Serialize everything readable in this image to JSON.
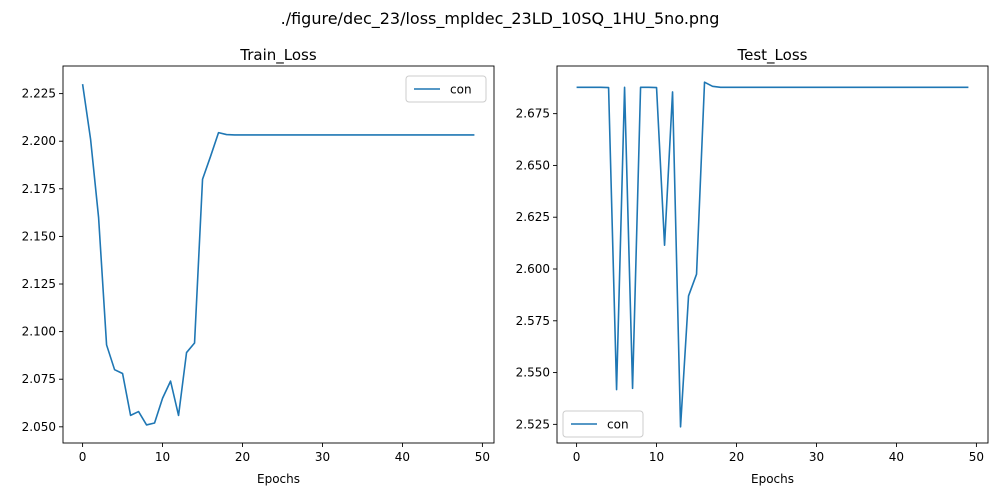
{
  "figure": {
    "suptitle": "./figure/dec_23/loss_mpldec_23LD_10SQ_1HU_5no.png"
  },
  "chart_data": [
    {
      "type": "line",
      "title": "Train_Loss",
      "xlabel": "Epochs",
      "ylabel": "",
      "xlim": [
        -2.45,
        51.45
      ],
      "ylim": [
        2.0415,
        2.2395
      ],
      "xticks": [
        "0",
        "10",
        "20",
        "30",
        "40",
        "50"
      ],
      "xtick_values": [
        0,
        10,
        20,
        30,
        40,
        50
      ],
      "yticks": [
        "2.050",
        "2.075",
        "2.100",
        "2.125",
        "2.150",
        "2.175",
        "2.200",
        "2.225"
      ],
      "ytick_values": [
        2.05,
        2.075,
        2.1,
        2.125,
        2.15,
        2.175,
        2.2,
        2.225
      ],
      "grid": false,
      "legend": "upper right",
      "series": [
        {
          "name": "con",
          "color": "#1f77b4",
          "x": [
            0,
            1,
            2,
            3,
            4,
            5,
            6,
            7,
            8,
            9,
            10,
            11,
            12,
            13,
            14,
            15,
            16,
            17,
            18,
            19,
            20,
            21,
            22,
            23,
            24,
            25,
            26,
            27,
            28,
            29,
            30,
            31,
            32,
            33,
            34,
            35,
            36,
            37,
            38,
            39,
            40,
            41,
            42,
            43,
            44,
            45,
            46,
            47,
            48,
            49
          ],
          "y": [
            2.23,
            2.201,
            2.16,
            2.093,
            2.08,
            2.078,
            2.056,
            2.058,
            2.051,
            2.052,
            2.065,
            2.074,
            2.056,
            2.089,
            2.094,
            2.18,
            2.192,
            2.2045,
            2.2035,
            2.2033,
            2.2033,
            2.2033,
            2.2033,
            2.2033,
            2.2033,
            2.2033,
            2.2033,
            2.2033,
            2.2033,
            2.2033,
            2.2033,
            2.2033,
            2.2033,
            2.2033,
            2.2033,
            2.2033,
            2.2033,
            2.2033,
            2.2033,
            2.2033,
            2.2033,
            2.2033,
            2.2033,
            2.2033,
            2.2033,
            2.2033,
            2.2033,
            2.2033,
            2.2033,
            2.2033
          ]
        }
      ]
    },
    {
      "type": "line",
      "title": "Test_Loss",
      "xlabel": "Epochs",
      "ylabel": "",
      "xlim": [
        -2.45,
        51.45
      ],
      "ylim": [
        2.516,
        2.698
      ],
      "xticks": [
        "0",
        "10",
        "20",
        "30",
        "40",
        "50"
      ],
      "xtick_values": [
        0,
        10,
        20,
        30,
        40,
        50
      ],
      "yticks": [
        "2.525",
        "2.550",
        "2.575",
        "2.600",
        "2.625",
        "2.650",
        "2.675"
      ],
      "ytick_values": [
        2.525,
        2.55,
        2.575,
        2.6,
        2.625,
        2.65,
        2.675
      ],
      "grid": false,
      "legend": "lower left",
      "series": [
        {
          "name": "con",
          "color": "#1f77b4",
          "x": [
            0,
            1,
            2,
            3,
            4,
            5,
            6,
            7,
            8,
            9,
            10,
            11,
            12,
            13,
            14,
            15,
            16,
            17,
            18,
            19,
            20,
            21,
            22,
            23,
            24,
            25,
            26,
            27,
            28,
            29,
            30,
            31,
            32,
            33,
            34,
            35,
            36,
            37,
            38,
            39,
            40,
            41,
            42,
            43,
            44,
            45,
            46,
            47,
            48,
            49
          ],
          "y": [
            2.6877,
            2.6877,
            2.6877,
            2.6877,
            2.6876,
            2.5418,
            2.6877,
            2.5424,
            2.6877,
            2.6877,
            2.6876,
            2.6115,
            2.6855,
            2.5238,
            2.587,
            2.5975,
            2.6902,
            2.6882,
            2.6877,
            2.6877,
            2.6877,
            2.6877,
            2.6877,
            2.6877,
            2.6877,
            2.6877,
            2.6877,
            2.6877,
            2.6877,
            2.6877,
            2.6877,
            2.6877,
            2.6877,
            2.6877,
            2.6877,
            2.6877,
            2.6877,
            2.6877,
            2.6877,
            2.6877,
            2.6877,
            2.6877,
            2.6877,
            2.6877,
            2.6877,
            2.6877,
            2.6877,
            2.6877,
            2.6877,
            2.6877
          ]
        }
      ]
    }
  ]
}
